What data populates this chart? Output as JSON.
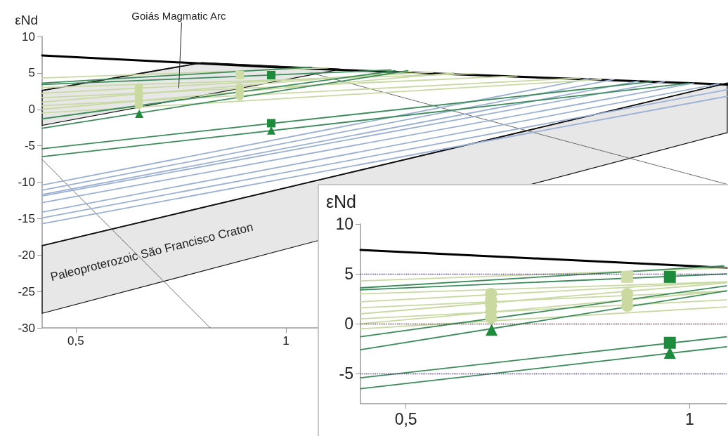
{
  "chart_data": [
    {
      "type": "line",
      "ylabel": "εNd",
      "xlim": [
        0.42,
        2.05
      ],
      "ylim": [
        -30,
        10
      ],
      "xticks": [
        {
          "value": 0.5,
          "label": "0,5"
        },
        1
      ],
      "yticks": [
        -30,
        -25,
        -20,
        -15,
        -10,
        -5,
        0,
        5,
        10
      ],
      "annotations": [
        {
          "text": "Goiás Magmatic Arc",
          "x": 0.745,
          "y": 2.9
        },
        "Paleoproterozoic São Francisco Craton"
      ],
      "series": [
        {
          "color": "#000000",
          "x": [
            0.42,
            1.0,
            1.5,
            2.05
          ],
          "values": [
            7.4,
            5.7,
            4.6,
            3.4
          ]
        },
        {
          "color": "#111111",
          "x": [
            0.42,
            0.8,
            1.13
          ],
          "values": [
            2.6,
            6.4,
            5.5
          ],
          "upper": [
            2.6,
            6.4,
            5.5
          ],
          "lower": [
            -2.2,
            1.9,
            5.5
          ]
        },
        {
          "color": "#111111",
          "x": [
            0.42,
            2.05
          ],
          "values": [
            -18.7,
            3.6
          ],
          "upper": [
            -18.7,
            3.6
          ],
          "lower": [
            -28,
            -3.2
          ]
        },
        {
          "line_style": "dotted",
          "color": "#555555",
          "x": [
            0.42,
            0.82
          ],
          "values": [
            -6.9,
            -30
          ]
        },
        {
          "line_style": "dotted",
          "color": "#555555",
          "x": [
            1.06,
            2.05
          ],
          "values": [
            5.0,
            -10.3
          ]
        },
        {
          "color": "#9bb0d6",
          "x": [
            0.42,
            1.72
          ],
          "values": [
            -10.4,
            4.2
          ]
        },
        {
          "color": "#9bb0d6",
          "x": [
            0.42,
            1.78
          ],
          "values": [
            -11.1,
            4.1
          ]
        },
        {
          "color": "#9bb0d6",
          "x": [
            0.42,
            1.84
          ],
          "values": [
            -11.7,
            3.9
          ]
        },
        {
          "color": "#9bb0d6",
          "x": [
            0.42,
            1.9
          ],
          "values": [
            -11.9,
            3.8
          ]
        },
        {
          "color": "#9bb0d6",
          "x": [
            0.42,
            1.97
          ],
          "values": [
            -12.8,
            3.6
          ]
        },
        {
          "color": "#9bb0d6",
          "x": [
            0.42,
            2.03
          ],
          "values": [
            -14.1,
            3.5
          ]
        },
        {
          "color": "#9bb0d6",
          "x": [
            0.42,
            2.05
          ],
          "values": [
            -14.9,
            2.7
          ]
        },
        {
          "color": "#9bb0d6",
          "x": [
            0.42,
            2.05
          ],
          "values": [
            -15.7,
            1.8
          ]
        },
        {
          "color": "#c8d9a2",
          "x": [
            0.42,
            1.1
          ],
          "values": [
            4.3,
            5.7
          ]
        },
        {
          "color": "#c8d9a2",
          "x": [
            0.42,
            1.45
          ],
          "values": [
            3.0,
            4.9
          ]
        },
        {
          "color": "#c8d9a2",
          "x": [
            0.42,
            1.35
          ],
          "values": [
            2.2,
            5.1
          ]
        },
        {
          "color": "#c8d9a2",
          "x": [
            0.42,
            1.55
          ],
          "values": [
            1.6,
            4.6
          ]
        },
        {
          "color": "#c8d9a2",
          "x": [
            0.42,
            1.3
          ],
          "values": [
            1.0,
            5.2
          ]
        },
        {
          "color": "#c8d9a2",
          "x": [
            0.42,
            1.7
          ],
          "values": [
            0.5,
            4.3
          ]
        },
        {
          "color": "#c8d9a2",
          "x": [
            0.42,
            1.4
          ],
          "values": [
            0.0,
            5.0
          ]
        },
        {
          "color": "#c8d9a2",
          "x": [
            0.42,
            1.75
          ],
          "values": [
            -0.5,
            4.1
          ]
        },
        {
          "color": "#3b8c5a",
          "x": [
            0.42,
            1.06
          ],
          "values": [
            3.6,
            5.8
          ]
        },
        {
          "color": "#3b8c5a",
          "x": [
            0.42,
            1.25
          ],
          "values": [
            3.4,
            5.4
          ]
        },
        {
          "color": "#3b8c5a",
          "x": [
            0.42,
            1.26
          ],
          "values": [
            -1.3,
            5.3
          ]
        },
        {
          "color": "#3b8c5a",
          "x": [
            0.42,
            1.29
          ],
          "values": [
            -2.6,
            5.3
          ]
        },
        {
          "color": "#3b8c5a",
          "x": [
            0.42,
            1.87
          ],
          "values": [
            -5.4,
            3.8
          ]
        },
        {
          "color": "#3b8c5a",
          "x": [
            0.42,
            1.96
          ],
          "values": [
            -6.5,
            3.6
          ]
        },
        {
          "type": "scatter",
          "marker": "circle",
          "color": "#c9d9a0",
          "x": [
            0.65,
            0.65,
            0.65,
            0.65,
            0.65,
            0.89,
            0.89,
            0.89
          ],
          "values": [
            0.6,
            1.2,
            1.8,
            2.4,
            3.0,
            1.8,
            2.4,
            3.0
          ]
        },
        {
          "type": "scatter",
          "marker": "square",
          "color": "#cfdcaa",
          "x": [
            0.89
          ],
          "values": [
            4.7
          ]
        },
        {
          "type": "scatter",
          "marker": "square",
          "color": "#1e8a3c",
          "x": [
            0.965,
            0.965
          ],
          "values": [
            4.7,
            -1.9
          ]
        },
        {
          "type": "scatter",
          "marker": "triangle",
          "color": "#1e8a3c",
          "x": [
            0.651,
            0.965
          ],
          "values": [
            -0.6,
            -2.9
          ]
        }
      ]
    },
    {
      "type": "line",
      "ylabel": "εNd",
      "xlim": [
        0.42,
        1.065
      ],
      "ylim": [
        -8,
        10
      ],
      "xticks": [
        {
          "value": 0.5,
          "label": "0,5"
        },
        1
      ],
      "yticks": [
        -5,
        0,
        5,
        10
      ],
      "ref_lines": [
        {
          "axis": "y",
          "value": 5,
          "color": "#4b3b6b",
          "line_style": "dotted"
        },
        {
          "axis": "y",
          "value": 0,
          "color": "#6b3b4b",
          "line_style": "dotted"
        },
        {
          "axis": "y",
          "value": -5,
          "color": "#4b3b6b",
          "line_style": "dotted"
        }
      ],
      "series": [
        {
          "color": "#000000",
          "x": [
            0.42,
            1.0,
            1.065
          ],
          "values": [
            7.4,
            5.8,
            5.6
          ]
        },
        {
          "color": "#c8d9a2",
          "x": [
            0.42,
            1.065
          ],
          "values": [
            4.3,
            5.6
          ]
        },
        {
          "color": "#c8d9a2",
          "x": [
            0.42,
            1.065
          ],
          "values": [
            3.0,
            4.2
          ]
        },
        {
          "color": "#c8d9a2",
          "x": [
            0.42,
            1.065
          ],
          "values": [
            2.2,
            4.2
          ]
        },
        {
          "color": "#c8d9a2",
          "x": [
            0.42,
            1.065
          ],
          "values": [
            1.6,
            3.3
          ]
        },
        {
          "color": "#c8d9a2",
          "x": [
            0.42,
            1.065
          ],
          "values": [
            1.0,
            4.1
          ]
        },
        {
          "color": "#c8d9a2",
          "x": [
            0.42,
            1.065
          ],
          "values": [
            0.5,
            2.4
          ]
        },
        {
          "color": "#c8d9a2",
          "x": [
            0.42,
            1.065
          ],
          "values": [
            0.0,
            3.3
          ]
        },
        {
          "color": "#c8d9a2",
          "x": [
            0.42,
            1.065
          ],
          "values": [
            -0.5,
            1.7
          ]
        },
        {
          "color": "#3b8c5a",
          "x": [
            0.42,
            1.06
          ],
          "values": [
            3.6,
            5.8
          ]
        },
        {
          "color": "#3b8c5a",
          "x": [
            0.42,
            1.065
          ],
          "values": [
            3.4,
            5.0
          ]
        },
        {
          "color": "#3b8c5a",
          "x": [
            0.42,
            1.065
          ],
          "values": [
            -1.3,
            3.8
          ]
        },
        {
          "color": "#3b8c5a",
          "x": [
            0.42,
            1.065
          ],
          "values": [
            -2.6,
            3.3
          ]
        },
        {
          "color": "#3b8c5a",
          "x": [
            0.42,
            1.065
          ],
          "values": [
            -5.4,
            -1.3
          ]
        },
        {
          "color": "#3b8c5a",
          "x": [
            0.42,
            1.065
          ],
          "values": [
            -6.5,
            -2.3
          ]
        },
        {
          "type": "scatter",
          "marker": "circle",
          "color": "#c9d9a0",
          "x": [
            0.65,
            0.65,
            0.65,
            0.65,
            0.65,
            0.89,
            0.89,
            0.89
          ],
          "values": [
            0.6,
            1.2,
            1.8,
            2.4,
            3.0,
            1.8,
            2.4,
            3.0
          ]
        },
        {
          "type": "scatter",
          "marker": "square",
          "color": "#cfdcaa",
          "x": [
            0.89
          ],
          "values": [
            4.7
          ]
        },
        {
          "type": "scatter",
          "marker": "square",
          "color": "#1e8a3c",
          "x": [
            0.965,
            0.965
          ],
          "values": [
            4.7,
            -1.9
          ]
        },
        {
          "type": "scatter",
          "marker": "triangle",
          "color": "#1e8a3c",
          "x": [
            0.651,
            0.965
          ],
          "values": [
            -0.6,
            -2.9
          ]
        }
      ]
    }
  ]
}
